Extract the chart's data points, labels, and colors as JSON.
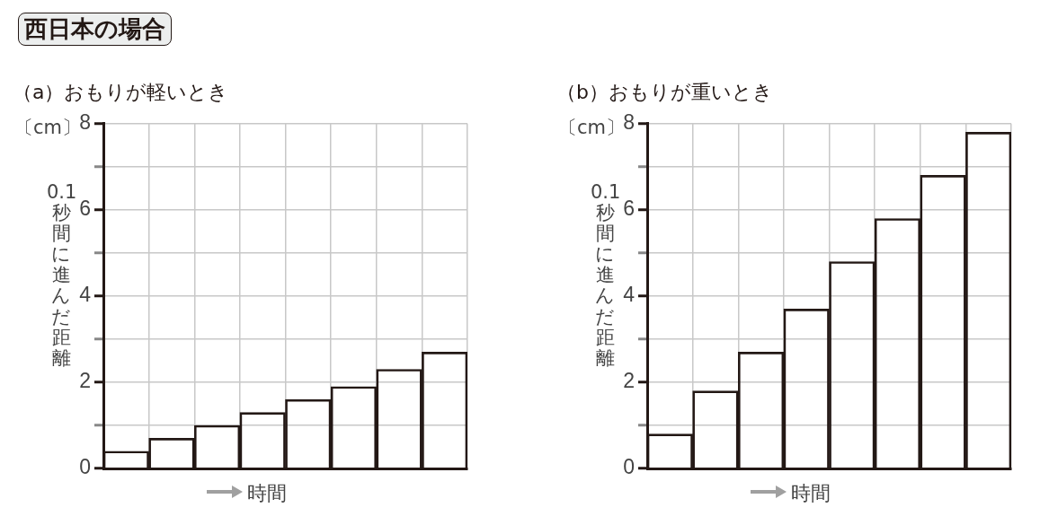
{
  "chart_data": [
    {
      "type": "bar",
      "title": "西日本の場合",
      "subtitle": "（a）おもりが軽いとき",
      "xlabel": "時間",
      "ylabel": "0.1秒間に進んだ距離",
      "annotations": [
        "〔cm〕"
      ],
      "categories": [
        null,
        null,
        null,
        null,
        null,
        null,
        null,
        null
      ],
      "series": [
        {
          "color": "#231815",
          "values": [
            0.4,
            0.7,
            1.0,
            1.3,
            1.6,
            1.9,
            2.3,
            2.7
          ]
        }
      ],
      "ylim": [
        0,
        8
      ],
      "yticks": [
        0,
        {
          "value": 1,
          "label": null
        },
        2,
        {
          "value": 3,
          "label": null
        },
        4,
        {
          "value": 5,
          "label": null
        },
        6,
        {
          "value": 7,
          "label": null
        },
        8
      ],
      "grid": true
    },
    {
      "type": "bar",
      "subtitle": "（b）おもりが重いとき",
      "xlabel": "時間",
      "ylabel": "0.1秒間に進んだ距離",
      "annotations": [
        "〔cm〕"
      ],
      "categories": [
        null,
        null,
        null,
        null,
        null,
        null,
        null,
        null
      ],
      "series": [
        {
          "color": "#231815",
          "values": [
            0.8,
            1.8,
            2.7,
            3.7,
            4.8,
            5.8,
            6.8,
            7.8
          ]
        }
      ],
      "ylim": [
        0,
        8
      ],
      "yticks": [
        0,
        {
          "value": 1,
          "label": null
        },
        2,
        {
          "value": 3,
          "label": null
        },
        4,
        {
          "value": 5,
          "label": null
        },
        6,
        {
          "value": 7,
          "label": null
        },
        8
      ],
      "grid": true
    }
  ]
}
